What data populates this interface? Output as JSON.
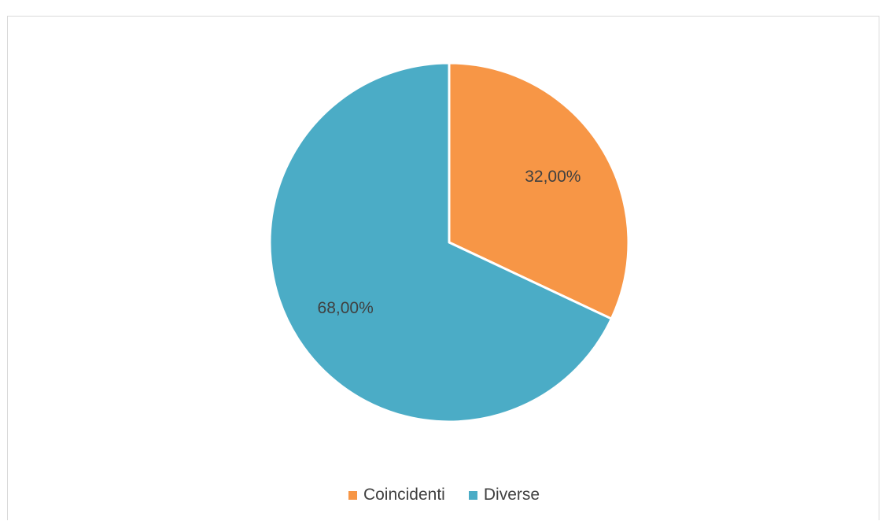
{
  "chart_data": {
    "type": "pie",
    "categories": [
      "Coincidenti",
      "Diverse"
    ],
    "values": [
      32.0,
      68.0
    ],
    "data_labels": [
      "32,00%",
      "68,00%"
    ],
    "colors": [
      "#F79646",
      "#4BACC6"
    ],
    "title": "",
    "legend": "bottom"
  }
}
